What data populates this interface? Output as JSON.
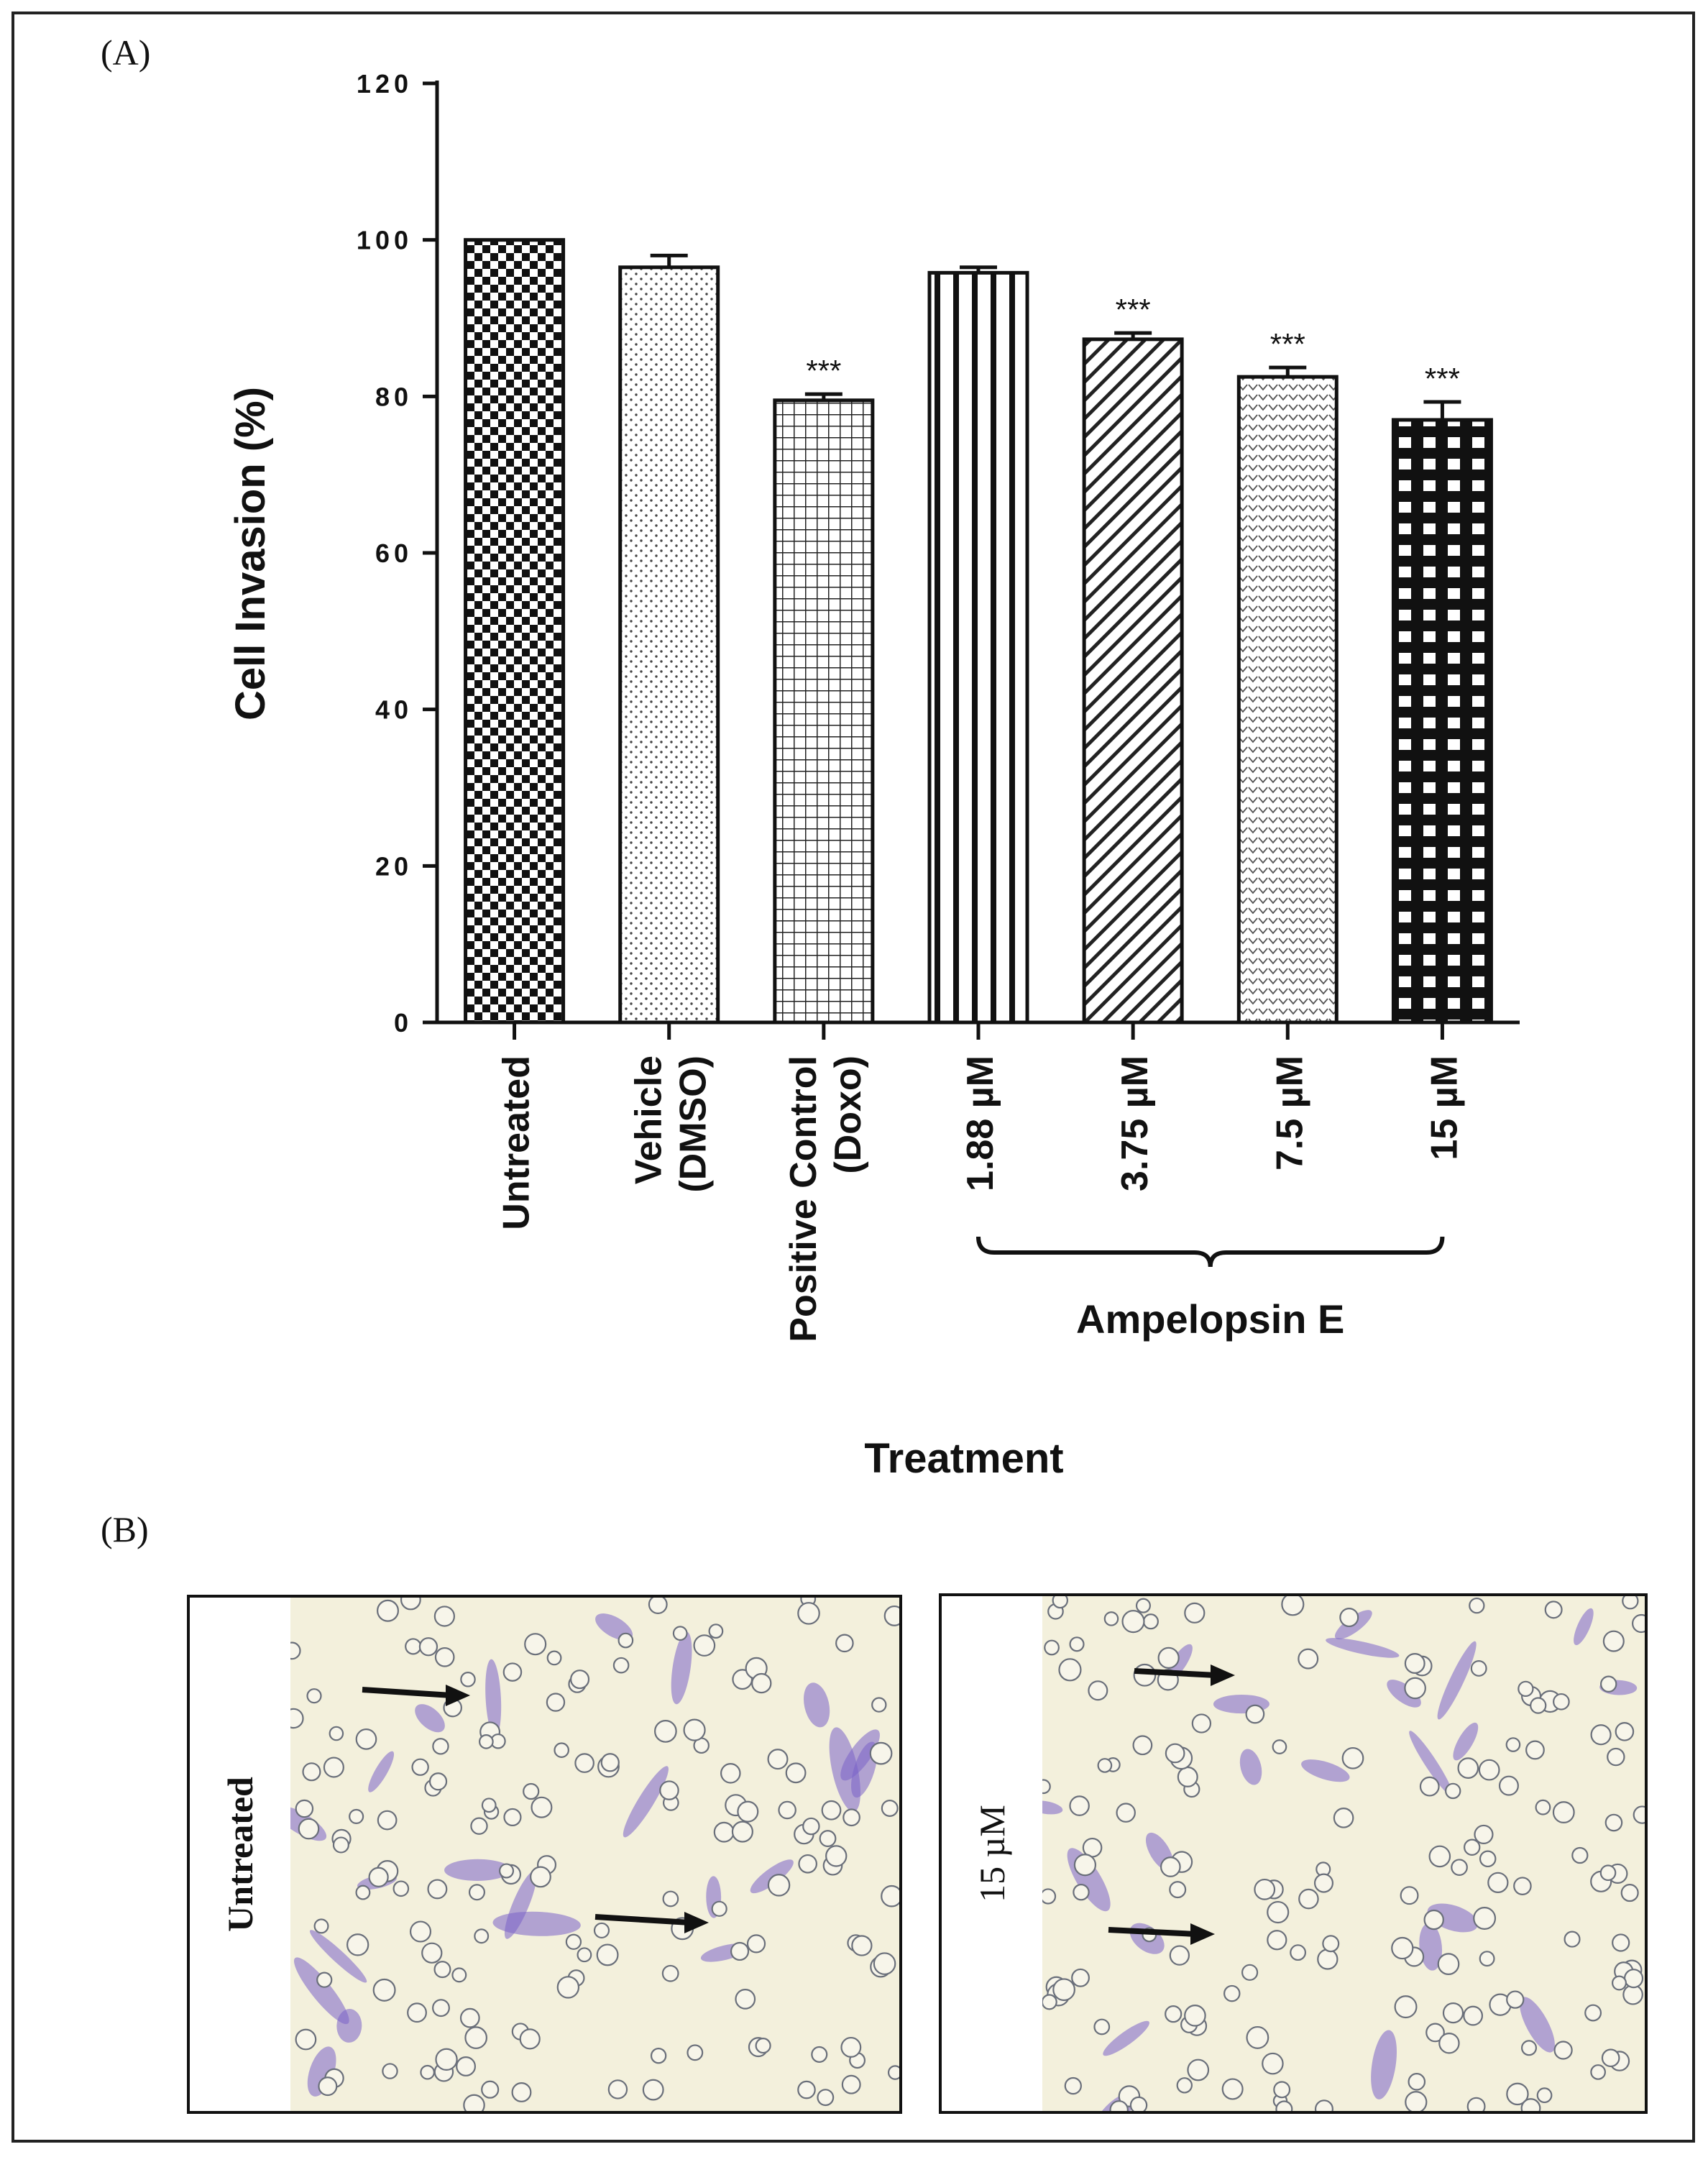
{
  "panel_a_label": "(A)",
  "panel_b_label": "(B)",
  "chart_data": {
    "type": "bar",
    "xlabel": "Treatment",
    "ylabel": "Cell Invasion (%)",
    "ylim": [
      0,
      120
    ],
    "yticks": [
      0,
      20,
      40,
      60,
      80,
      100,
      120
    ],
    "categories": [
      {
        "label": "Untreated",
        "label_lines": [
          "Untreated"
        ],
        "value": 100,
        "error": 0,
        "sig": "",
        "pattern": "checker"
      },
      {
        "label": "Vehicle (DMSO)",
        "label_lines": [
          "Vehicle",
          "(DMSO)"
        ],
        "value": 96.5,
        "error": 1.5,
        "sig": "",
        "pattern": "dots"
      },
      {
        "label": "Positive Control (Doxo)",
        "label_lines": [
          "Positive Control",
          "(Doxo)"
        ],
        "value": 79.5,
        "error": 0.8,
        "sig": "***",
        "pattern": "grid"
      },
      {
        "label": "1.88 µM",
        "label_lines": [
          "1.88 µM"
        ],
        "value": 95.8,
        "error": 0.7,
        "sig": "",
        "pattern": "vlines"
      },
      {
        "label": "3.75 µM",
        "label_lines": [
          "3.75 µM"
        ],
        "value": 87.3,
        "error": 0.8,
        "sig": "***",
        "pattern": "diag"
      },
      {
        "label": "7.5 µM",
        "label_lines": [
          "7.5 µM"
        ],
        "value": 82.5,
        "error": 1.2,
        "sig": "***",
        "pattern": "chevron"
      },
      {
        "label": "15 µM",
        "label_lines": [
          "15 µM"
        ],
        "value": 77,
        "error": 2.3,
        "sig": "***",
        "pattern": "bigcheck"
      }
    ],
    "group_bracket": {
      "label": "Ampelopsin E",
      "from_index": 3,
      "to_index": 6
    }
  },
  "micrographs": [
    {
      "label": "Untreated",
      "bold": true
    },
    {
      "label": "15 µM",
      "bold": false
    }
  ],
  "colors": {
    "stain": "#7a62c9",
    "background": "#f3f0dc"
  }
}
